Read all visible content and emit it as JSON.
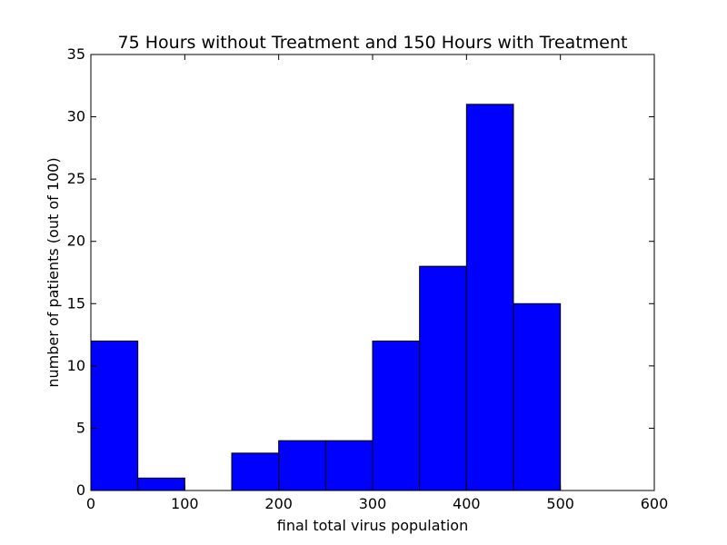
{
  "chart_data": {
    "type": "bar",
    "title": "75 Hours without Treatment and 150 Hours with Treatment",
    "xlabel": "final total virus population",
    "ylabel": "number of patients (out of 100)",
    "xlim": [
      0,
      600
    ],
    "ylim": [
      0,
      35
    ],
    "xticks": [
      0,
      100,
      200,
      300,
      400,
      500,
      600
    ],
    "yticks": [
      0,
      5,
      10,
      15,
      20,
      25,
      30,
      35
    ],
    "grid": false,
    "bins": [
      {
        "start": 0,
        "end": 50,
        "count": 12
      },
      {
        "start": 50,
        "end": 100,
        "count": 1
      },
      {
        "start": 100,
        "end": 150,
        "count": 0
      },
      {
        "start": 150,
        "end": 200,
        "count": 3
      },
      {
        "start": 200,
        "end": 250,
        "count": 4
      },
      {
        "start": 250,
        "end": 300,
        "count": 4
      },
      {
        "start": 300,
        "end": 350,
        "count": 12
      },
      {
        "start": 350,
        "end": 400,
        "count": 18
      },
      {
        "start": 400,
        "end": 450,
        "count": 31
      },
      {
        "start": 450,
        "end": 500,
        "count": 15
      }
    ],
    "colors": {
      "bar_fill": "#0000ff",
      "bar_edge": "#000000",
      "axes": "#000000",
      "background": "#ffffff"
    }
  }
}
